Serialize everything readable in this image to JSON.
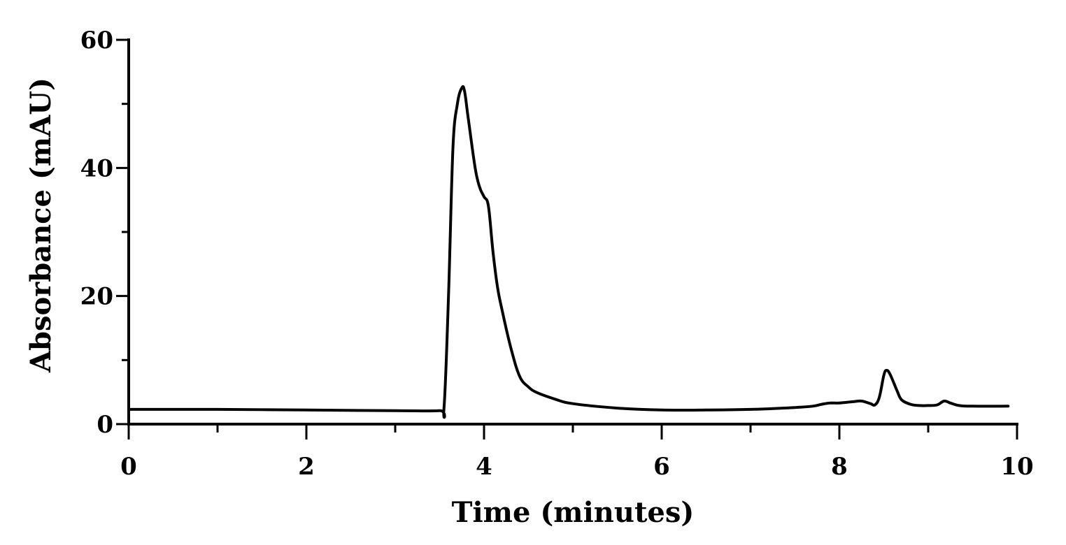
{
  "chart_data": {
    "type": "line",
    "title": "",
    "xlabel": "Time (minutes)",
    "ylabel": "Absorbance (mAU)",
    "xlim": [
      0,
      10
    ],
    "ylim": [
      0,
      60
    ],
    "x_ticks": [
      0,
      2,
      4,
      6,
      8,
      10
    ],
    "x_minor_ticks": [
      1,
      3,
      5,
      7,
      9
    ],
    "y_ticks": [
      0,
      20,
      40,
      60
    ],
    "y_minor_ticks": [
      10,
      30,
      50
    ],
    "grid": false,
    "legend": "none",
    "line_color": "#000000",
    "series": [
      {
        "x": [
          0,
          1,
          2,
          3,
          3.5,
          3.55,
          3.6,
          3.65,
          3.7,
          3.75,
          3.78,
          3.82,
          3.9,
          3.95,
          4.0,
          4.05,
          4.1,
          4.15,
          4.2,
          4.3,
          4.4,
          4.5,
          4.6,
          4.8,
          5.0,
          5.5,
          6.0,
          6.5,
          7.0,
          7.5,
          7.7,
          7.8,
          7.9,
          8.0,
          8.15,
          8.25,
          8.35,
          8.4,
          8.45,
          8.5,
          8.53,
          8.57,
          8.65,
          8.7,
          8.8,
          8.9,
          9.0,
          9.1,
          9.18,
          9.25,
          9.35,
          9.5,
          9.9
        ],
        "y": [
          2.3,
          2.3,
          2.2,
          2.1,
          2.1,
          2.6,
          20,
          43,
          50,
          52.5,
          52,
          48,
          40,
          37,
          35.5,
          34,
          27,
          21.5,
          18,
          12,
          7.5,
          5.8,
          4.9,
          3.9,
          3.2,
          2.5,
          2.2,
          2.2,
          2.3,
          2.6,
          2.8,
          3.1,
          3.3,
          3.3,
          3.5,
          3.6,
          3.2,
          3.0,
          4.2,
          7.6,
          8.4,
          7.8,
          5.2,
          3.8,
          3.1,
          2.9,
          2.9,
          3.0,
          3.6,
          3.3,
          2.9,
          2.8,
          2.8
        ]
      }
    ]
  }
}
